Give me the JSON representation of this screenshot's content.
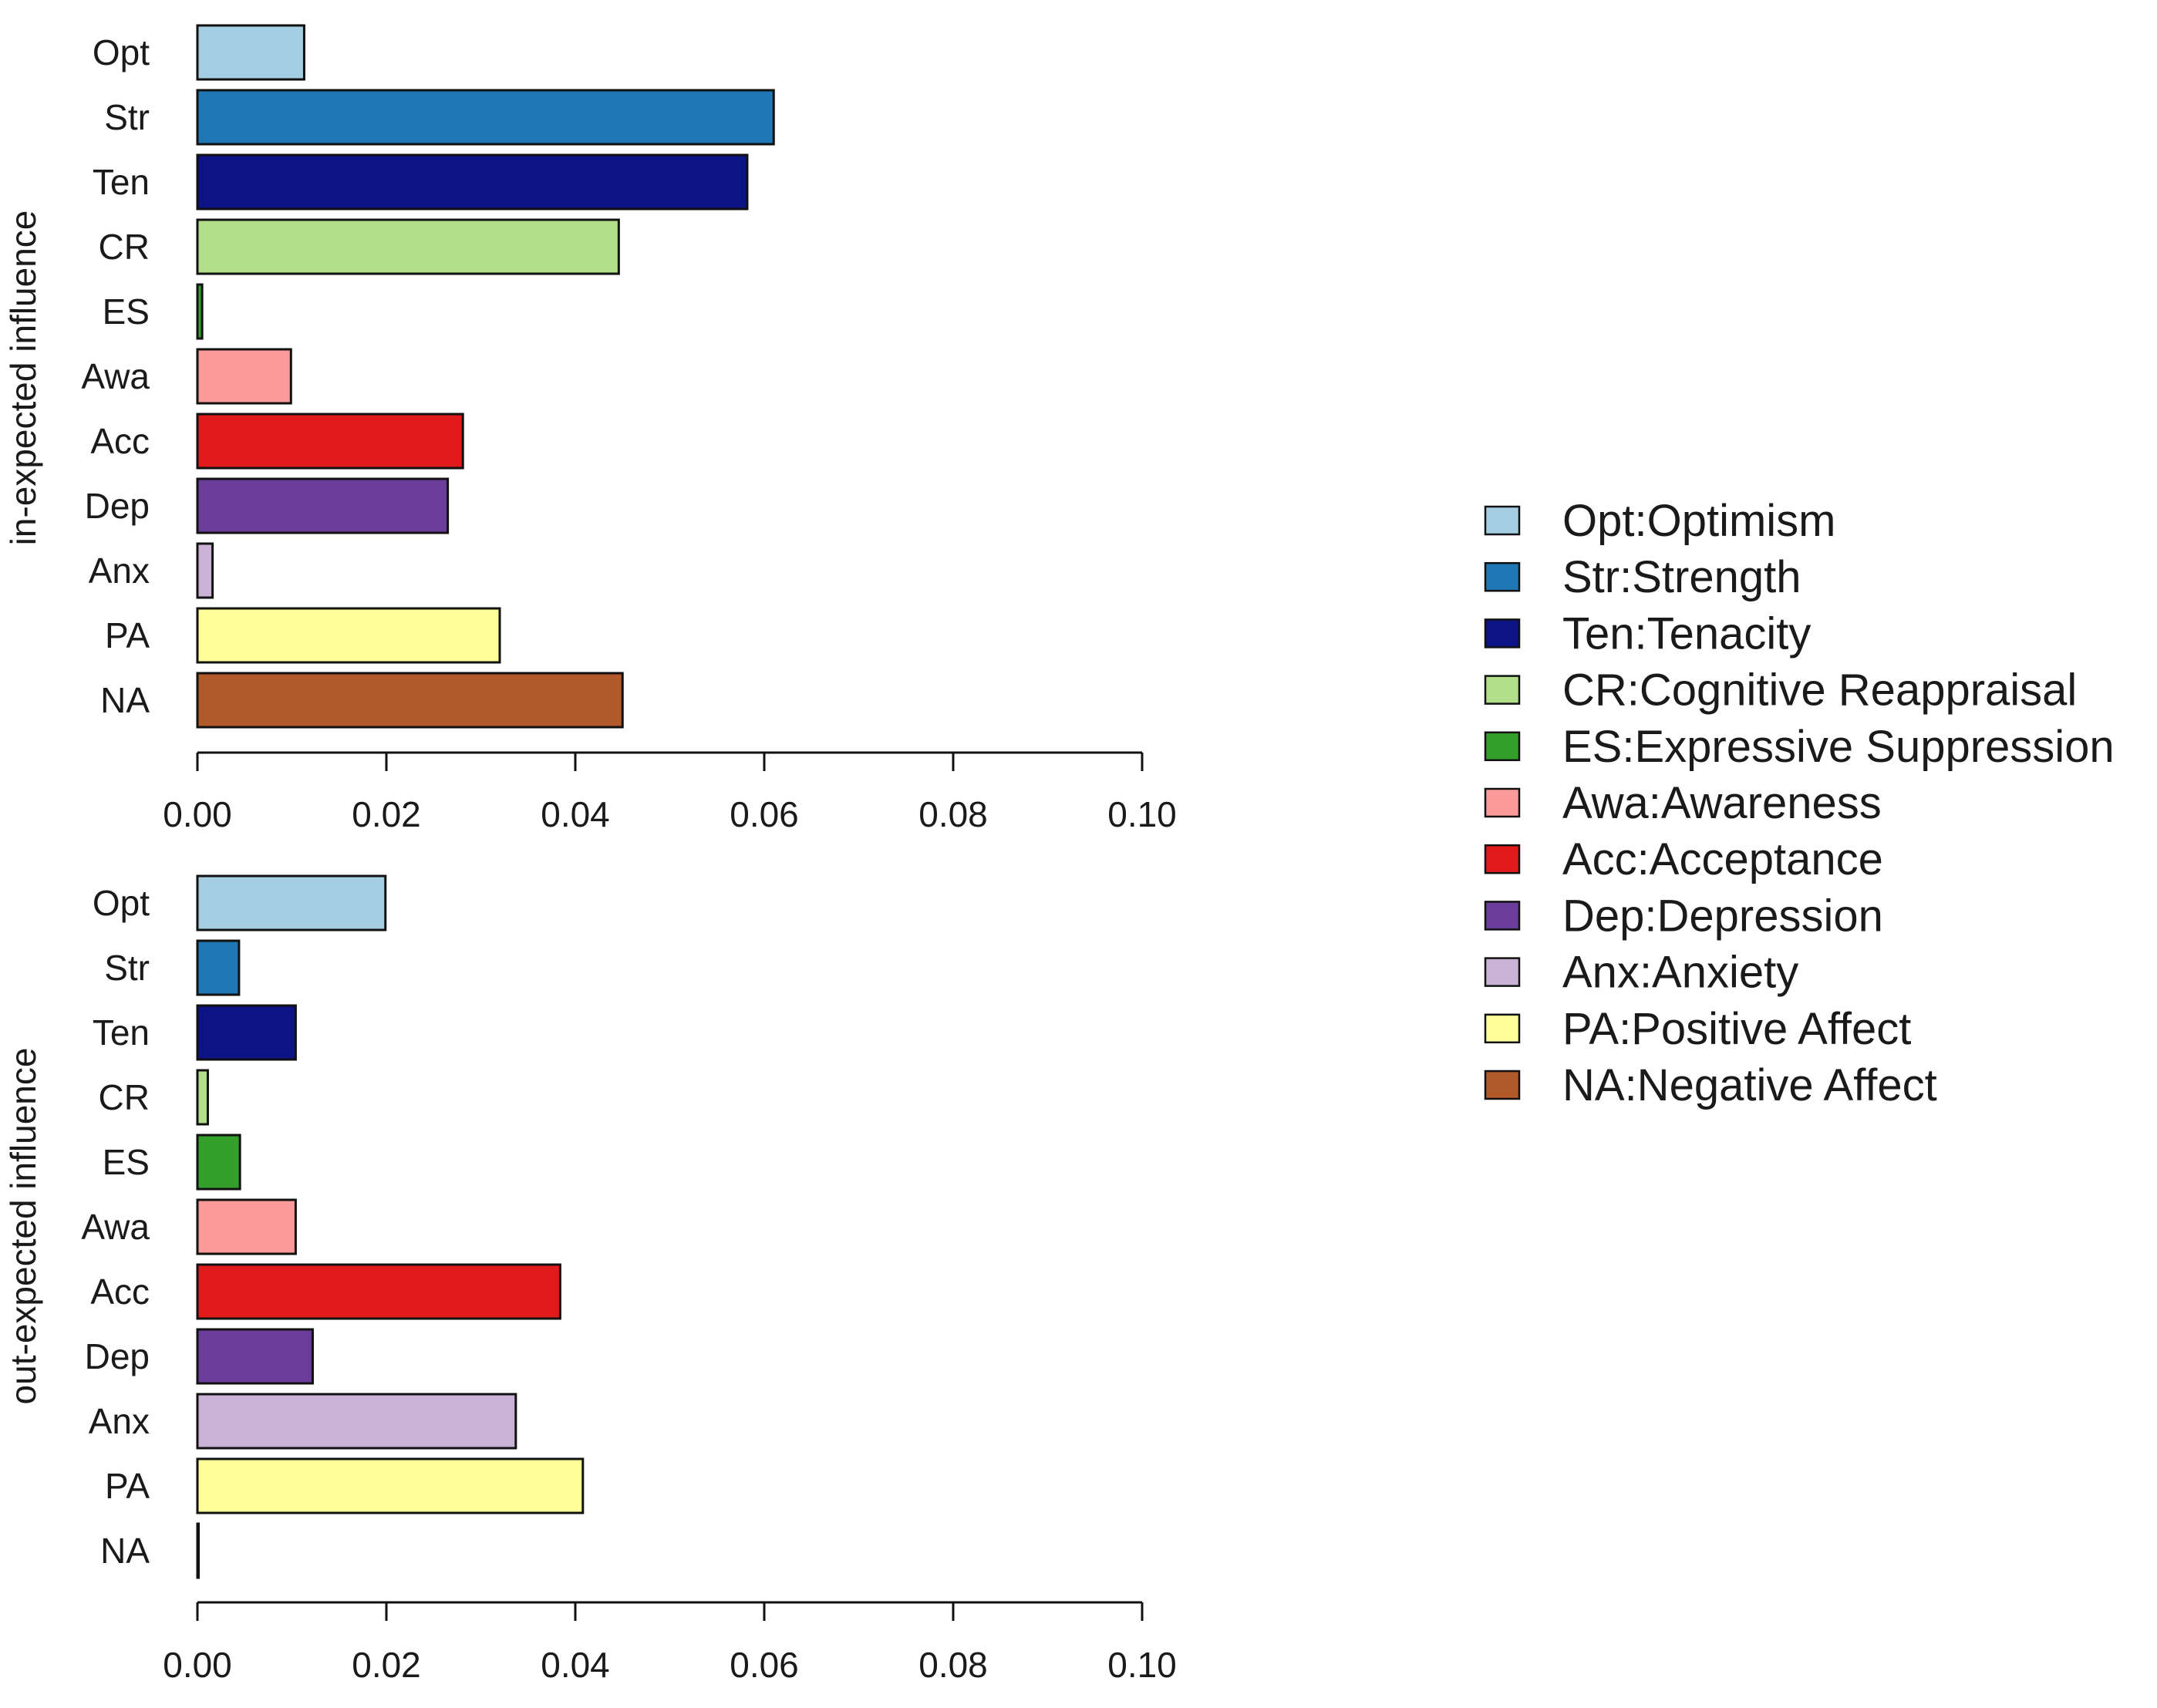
{
  "chart_data": [
    {
      "type": "bar",
      "orientation": "horizontal",
      "ylabel": "in-expected influence",
      "xlabel": "",
      "xlim": [
        0,
        0.1
      ],
      "xticks": [
        "0.00",
        "0.02",
        "0.04",
        "0.06",
        "0.08",
        "0.10"
      ],
      "categories": [
        "Opt",
        "Str",
        "Ten",
        "CR",
        "ES",
        "Awa",
        "Acc",
        "Dep",
        "Anx",
        "PA",
        "NA"
      ],
      "values": [
        0.0113,
        0.061,
        0.0582,
        0.0446,
        0.0005,
        0.0099,
        0.0281,
        0.0265,
        0.0016,
        0.032,
        0.045
      ]
    },
    {
      "type": "bar",
      "orientation": "horizontal",
      "ylabel": "out-expected influence",
      "xlabel": "",
      "xlim": [
        0,
        0.1
      ],
      "xticks": [
        "0.00",
        "0.02",
        "0.04",
        "0.06",
        "0.08",
        "0.10"
      ],
      "categories": [
        "Opt",
        "Str",
        "Ten",
        "CR",
        "ES",
        "Awa",
        "Acc",
        "Dep",
        "Anx",
        "PA",
        "NA"
      ],
      "values": [
        0.0199,
        0.0044,
        0.0104,
        0.0011,
        0.0045,
        0.0104,
        0.0384,
        0.0122,
        0.0337,
        0.0408,
        0.0001
      ]
    }
  ],
  "colors": [
    "#a6cee3",
    "#1f78b4",
    "#0c1485",
    "#b2df8a",
    "#33a02c",
    "#fb9a99",
    "#e31a1c",
    "#6a3d9a",
    "#cab2d6",
    "#ffff99",
    "#b15928"
  ],
  "legend": {
    "position": "right",
    "entries": [
      "Opt:Optimism",
      "Str:Strength",
      "Ten:Tenacity",
      "CR:Cognitive Reappraisal",
      "ES:Expressive Suppression",
      "Awa:Awareness",
      "Acc:Acceptance",
      "Dep:Depression",
      "Anx:Anxiety",
      "PA:Positive Affect",
      "NA:Negative Affect"
    ]
  }
}
